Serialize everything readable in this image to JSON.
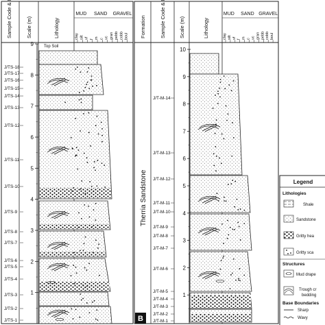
{
  "header": {
    "sample_code": "Sample Code & No.",
    "scale": "Scale (m)",
    "lithology": "Lithology",
    "formation": "Formation",
    "grain_groups": [
      "MUD",
      "SAND",
      "GRAVEL"
    ],
    "grain_sizes": [
      "clay",
      "silt",
      "vf",
      "f",
      "m",
      "c",
      "vc",
      "gran",
      "pebb",
      "cobb",
      "boul"
    ]
  },
  "left_column": {
    "scale_ticks": [
      "1",
      "2",
      "3",
      "4",
      "5",
      "6",
      "7",
      "8",
      "9"
    ],
    "top_label": "Top Soil",
    "samples": [
      "J/TS-18",
      "J/TS-17",
      "J/TS-16",
      "J/TS-15",
      "J/TS-14",
      "J/TS-13",
      "J/TS-12",
      "J/TS-11",
      "J/TS-10",
      "J/TS-9",
      "J/TS-8",
      "J/TS-7",
      "J/TS-6",
      "J/TS-5",
      "J/TS-4",
      "J/TS-3",
      "J/TS-2",
      "J/TS-1"
    ]
  },
  "right_column": {
    "panel_letter": "B",
    "formation_name": "Therria Sandstone",
    "scale_ticks": [
      "1",
      "2",
      "3",
      "4",
      "5",
      "6",
      "7",
      "8",
      "9",
      "10"
    ],
    "samples": [
      "J/T-M-14",
      "J/T-M-13",
      "J/T-M-12",
      "J/T-M-11",
      "J/T-M-10",
      "J/T-M-9",
      "J/T-M-8",
      "J/T-M-7",
      "J/T-M-6",
      "J/T-M-5",
      "J/T-M-4",
      "J/T-M-3",
      "J/T-M-2",
      "J/T-M-1"
    ]
  },
  "legend": {
    "title": "Legend",
    "lithologies_heading": "Lithologies",
    "lithologies": [
      "Shale",
      "Sandstone",
      "Gritty hea",
      "Gritty sca"
    ],
    "structures_heading": "Structures",
    "structures": [
      "Mud drape",
      "Trough cr",
      "bedding"
    ],
    "boundaries_heading": "Base Boundaries",
    "boundaries": [
      "Sharp",
      "Wavy"
    ]
  }
}
